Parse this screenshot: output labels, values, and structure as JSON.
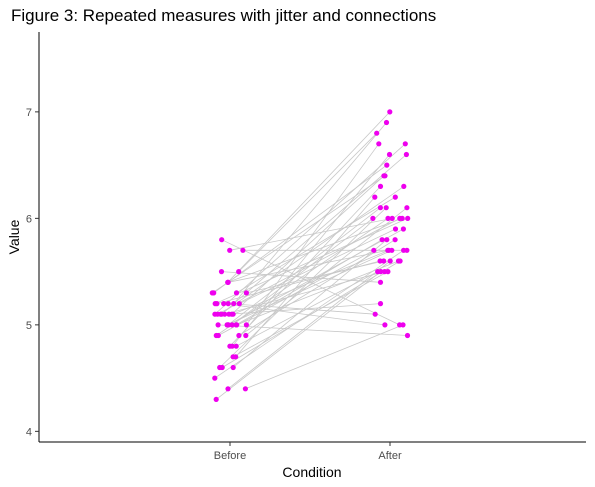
{
  "chart_data": {
    "type": "scatter",
    "title": "Figure 3: Repeated measures with jitter and connections",
    "xlabel": "Condition",
    "ylabel": "Value",
    "categories": [
      "Before",
      "After"
    ],
    "ylim": [
      3.9,
      7.75
    ],
    "yticks": [
      4,
      5,
      6,
      7
    ],
    "grid": false,
    "point_color": "#ee00ee",
    "line_color": "#c8c8c8",
    "pairs": [
      [
        5.7,
        6.0
      ],
      [
        4.3,
        5.5
      ],
      [
        4.4,
        5.6
      ],
      [
        4.5,
        5.7
      ],
      [
        4.6,
        5.8
      ],
      [
        4.6,
        5.6
      ],
      [
        4.7,
        6.2
      ],
      [
        4.8,
        6.3
      ],
      [
        4.8,
        5.5
      ],
      [
        4.8,
        6.6
      ],
      [
        4.9,
        5.7
      ],
      [
        4.9,
        6.1
      ],
      [
        4.9,
        6.0
      ],
      [
        5.0,
        6.7
      ],
      [
        5.0,
        5.7
      ],
      [
        5.0,
        5.8
      ],
      [
        5.0,
        4.9
      ],
      [
        5.0,
        6.1
      ],
      [
        5.1,
        6.4
      ],
      [
        5.1,
        6.0
      ],
      [
        5.1,
        5.5
      ],
      [
        5.1,
        6.7
      ],
      [
        5.1,
        6.3
      ],
      [
        5.1,
        5.2
      ],
      [
        5.2,
        6.9
      ],
      [
        5.2,
        5.9
      ],
      [
        5.2,
        5.6
      ],
      [
        5.2,
        5.1
      ],
      [
        5.3,
        6.5
      ],
      [
        5.3,
        6.2
      ],
      [
        5.3,
        5.6
      ],
      [
        5.4,
        7.0
      ],
      [
        5.4,
        6.0
      ],
      [
        5.4,
        5.7
      ],
      [
        5.5,
        5.4
      ],
      [
        5.5,
        6.8
      ],
      [
        5.8,
        5.0
      ],
      [
        5.7,
        5.7
      ],
      [
        4.4,
        5.0
      ],
      [
        4.9,
        5.8
      ],
      [
        5.0,
        6.0
      ],
      [
        5.2,
        5.0
      ],
      [
        4.6,
        6.1
      ],
      [
        5.0,
        5.6
      ],
      [
        5.1,
        6.6
      ],
      [
        5.3,
        6.4
      ],
      [
        4.7,
        5.5
      ],
      [
        5.2,
        6.0
      ],
      [
        5.0,
        5.9
      ],
      [
        5.1,
        5.7
      ]
    ]
  }
}
